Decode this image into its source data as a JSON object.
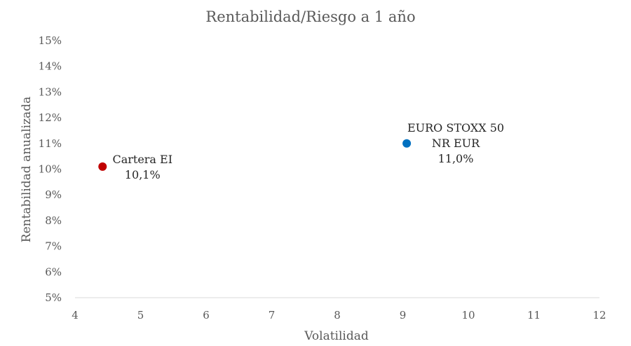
{
  "chart_data": {
    "type": "scatter",
    "title": "Rentabilidad/Riesgo a 1 año",
    "xlabel": "Volatilidad",
    "ylabel": "Rentabilidad anualizada",
    "xlim": [
      4,
      12
    ],
    "ylim": [
      5,
      15
    ],
    "x_ticks": [
      "4",
      "5",
      "6",
      "7",
      "8",
      "9",
      "10",
      "11",
      "12"
    ],
    "y_ticks": [
      "5%",
      "6%",
      "7%",
      "8%",
      "9%",
      "10%",
      "11%",
      "12%",
      "13%",
      "14%",
      "15%"
    ],
    "grid": false,
    "points": [
      {
        "label_lines": [
          "Cartera EI",
          "10,1%"
        ],
        "x": 4.42,
        "y": 10.1,
        "color": "#c00000"
      },
      {
        "label_lines": [
          "EURO STOXX 50",
          "NR EUR",
          "11,0%"
        ],
        "x": 9.06,
        "y": 11.0,
        "color": "#0070c0"
      }
    ]
  }
}
